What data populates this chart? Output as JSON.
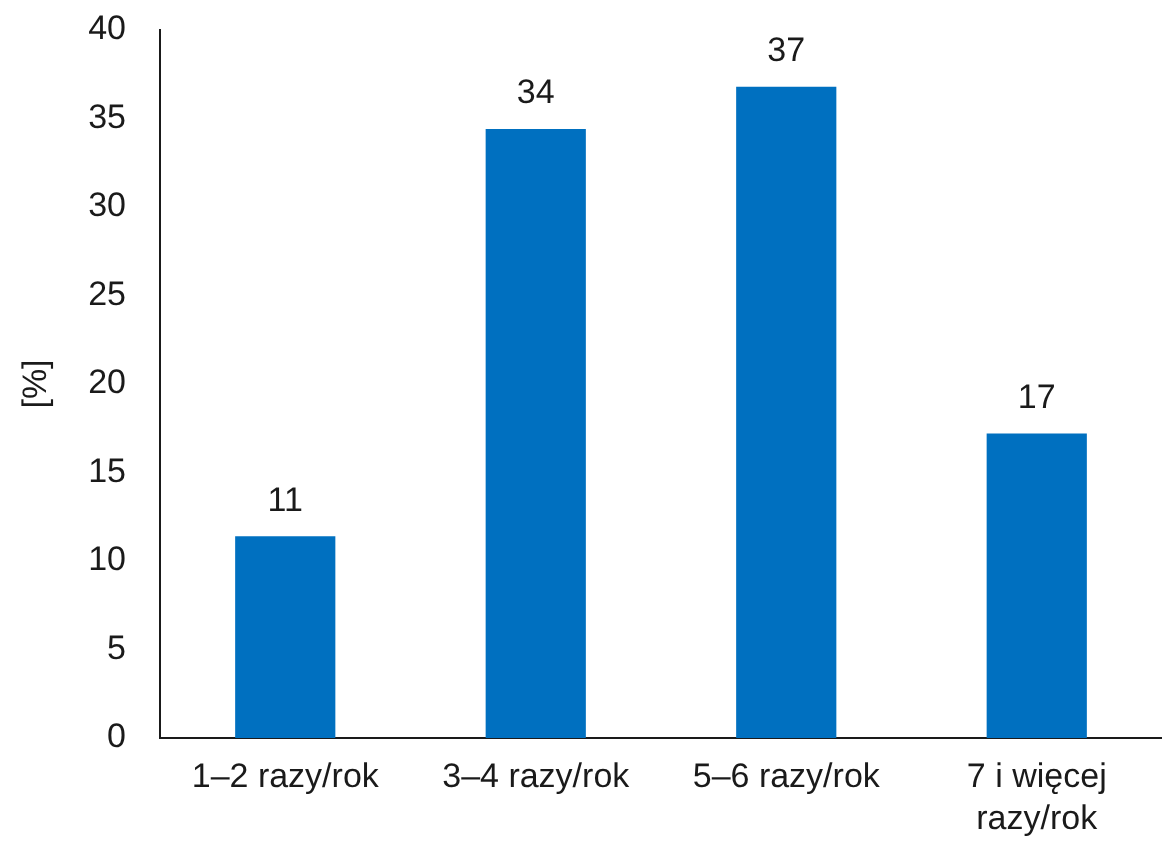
{
  "chart_data": {
    "type": "bar",
    "ylabel": "[%]",
    "categories": [
      "1–2 razy/rok",
      "3–4 razy/rok",
      "5–6 razy/rok",
      "7 i więcej razy/rok"
    ],
    "values": [
      11.4,
      34.4,
      36.8,
      17.2
    ],
    "value_labels": [
      "11",
      "34",
      "37",
      "17"
    ],
    "color": "#0070c0",
    "ylim": [
      0,
      40
    ],
    "yticks": [
      0,
      5,
      10,
      15,
      20,
      25,
      30,
      35,
      40
    ],
    "grid": false,
    "legend": false
  }
}
